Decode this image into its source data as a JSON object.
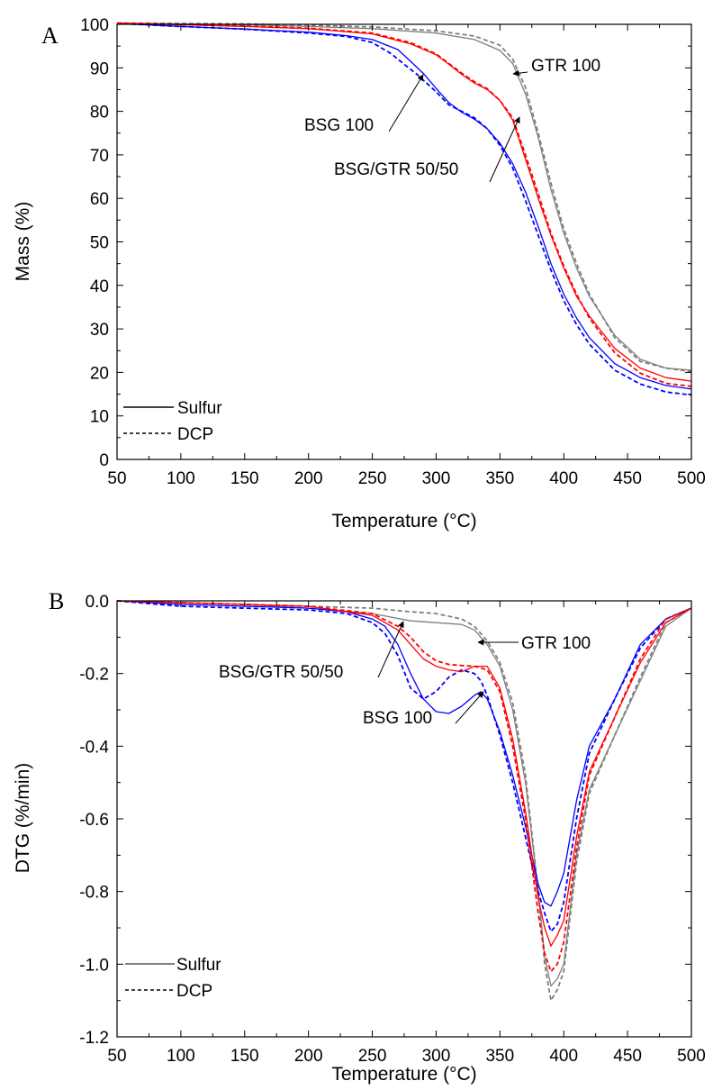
{
  "chart_data": [
    {
      "panel": "A",
      "type": "line",
      "xlabel": "Temperature (°C)",
      "ylabel": "Mass (%)",
      "xlim": [
        50,
        500
      ],
      "ylim": [
        0,
        100
      ],
      "xticks": [
        50,
        100,
        150,
        200,
        250,
        300,
        350,
        400,
        450,
        500
      ],
      "yticks": [
        0,
        10,
        20,
        30,
        40,
        50,
        60,
        70,
        80,
        90,
        100
      ],
      "grid": false,
      "legend_position": "bottom-left",
      "legend": [
        {
          "label": "Sulfur",
          "style": "solid"
        },
        {
          "label": "DCP",
          "style": "dashed"
        }
      ],
      "annotations": [
        {
          "text": "GTR 100",
          "target": [
            362,
            89.8
          ]
        },
        {
          "text": "BSG 100",
          "target": [
            287,
            88.8
          ]
        },
        {
          "text": "BSG/GTR 50/50",
          "target": [
            365,
            78.8
          ]
        }
      ],
      "series": [
        {
          "group": "GTR 100",
          "style": "solid",
          "color": "#7f7f7f",
          "x": [
            50,
            100,
            150,
            200,
            250,
            300,
            330,
            350,
            360,
            370,
            380,
            390,
            400,
            410,
            420,
            440,
            460,
            480,
            500
          ],
          "y": [
            100.3,
            100.1,
            99.9,
            99.5,
            99,
            98,
            96.5,
            94,
            91,
            84,
            74,
            62,
            52,
            44,
            37.5,
            28.5,
            23,
            21,
            20.5
          ]
        },
        {
          "group": "GTR 100",
          "style": "dashed",
          "color": "#7f7f7f",
          "x": [
            50,
            100,
            150,
            200,
            250,
            300,
            330,
            350,
            360,
            370,
            380,
            390,
            400,
            410,
            420,
            440,
            460,
            480,
            500
          ],
          "y": [
            100.3,
            100.2,
            100.1,
            99.8,
            99.4,
            98.5,
            97.3,
            95.2,
            92,
            85.5,
            75,
            63.5,
            53,
            45,
            38,
            28,
            22.5,
            21,
            20.2
          ]
        },
        {
          "group": "BSG 100",
          "style": "solid",
          "color": "#0000ff",
          "x": [
            50,
            100,
            150,
            200,
            230,
            250,
            270,
            280,
            290,
            300,
            310,
            320,
            330,
            340,
            350,
            360,
            370,
            380,
            390,
            400,
            410,
            420,
            440,
            460,
            480,
            500
          ],
          "y": [
            100.2,
            99.5,
            98.9,
            98.2,
            97.4,
            96.5,
            94.2,
            91.5,
            88.7,
            85.3,
            82,
            79.8,
            78.2,
            76,
            72.7,
            68,
            61.5,
            53.5,
            45,
            38,
            32.5,
            28,
            22,
            18.8,
            17,
            16.2
          ]
        },
        {
          "group": "BSG 100",
          "style": "dashed",
          "color": "#0000ff",
          "x": [
            50,
            100,
            150,
            200,
            230,
            250,
            265,
            275,
            285,
            300,
            310,
            320,
            330,
            340,
            350,
            360,
            370,
            380,
            390,
            400,
            410,
            420,
            440,
            460,
            480,
            500
          ],
          "y": [
            100.2,
            99.5,
            98.9,
            98,
            97.2,
            95.8,
            93.2,
            90.8,
            88.5,
            84.5,
            81.5,
            80,
            78.5,
            76,
            72.2,
            67,
            59.5,
            51.5,
            43.5,
            36.5,
            31,
            26.5,
            20.5,
            17.3,
            15.5,
            14.8
          ]
        },
        {
          "group": "BSG/GTR 50/50",
          "style": "solid",
          "color": "#ff0000",
          "x": [
            50,
            100,
            150,
            200,
            250,
            280,
            300,
            310,
            320,
            330,
            340,
            350,
            360,
            370,
            380,
            390,
            400,
            410,
            420,
            440,
            460,
            480,
            500
          ],
          "y": [
            100.3,
            99.9,
            99.5,
            99,
            97.8,
            95.5,
            93,
            90.8,
            88.5,
            86.5,
            85,
            82.5,
            78,
            69,
            60,
            51.5,
            44,
            37.5,
            33,
            25.5,
            21,
            18.8,
            18
          ]
        },
        {
          "group": "BSG/GTR 50/50",
          "style": "dashed",
          "color": "#ff0000",
          "x": [
            50,
            100,
            150,
            200,
            250,
            280,
            300,
            310,
            320,
            330,
            340,
            350,
            360,
            370,
            380,
            390,
            400,
            410,
            420,
            440,
            460,
            480,
            500
          ],
          "y": [
            100.3,
            100,
            99.6,
            99.1,
            98,
            95.8,
            93.2,
            91,
            88.8,
            86.8,
            85.2,
            82.5,
            78.5,
            70,
            61,
            52,
            44.5,
            38,
            32.5,
            24.5,
            19.8,
            17.5,
            16.8
          ]
        }
      ]
    },
    {
      "panel": "B",
      "type": "line",
      "xlabel": "Temperature (°C)",
      "ylabel": "DTG (%/min)",
      "xlim": [
        50,
        500
      ],
      "ylim": [
        -1.2,
        0.0
      ],
      "xticks": [
        50,
        100,
        150,
        200,
        250,
        300,
        350,
        400,
        450,
        500
      ],
      "yticks": [
        0.0,
        -0.2,
        -0.4,
        -0.6,
        -0.8,
        -1.0,
        -1.2
      ],
      "ytick_labels": [
        "0.0",
        "-0.2",
        "-0.4",
        "-0.6",
        "-0.8",
        "-1.0",
        "-1.2"
      ],
      "grid": false,
      "legend_position": "bottom-left",
      "legend": [
        {
          "label": "Sulfur",
          "style": "solid"
        },
        {
          "label": "DCP",
          "style": "dashed"
        }
      ],
      "annotations": [
        {
          "text": "GTR 100",
          "target": [
            335,
            -0.12
          ]
        },
        {
          "text": "BSG/GTR 50/50",
          "target": [
            277,
            -0.15
          ]
        },
        {
          "text": "BSG 100",
          "target": [
            334,
            -0.25
          ]
        }
      ],
      "series": [
        {
          "group": "GTR 100",
          "style": "solid",
          "color": "#7f7f7f",
          "x": [
            50,
            100,
            150,
            200,
            250,
            280,
            300,
            320,
            330,
            340,
            350,
            360,
            370,
            380,
            385,
            390,
            395,
            400,
            410,
            420,
            440,
            460,
            480,
            500
          ],
          "y": [
            0,
            -0.005,
            -0.01,
            -0.02,
            -0.035,
            -0.055,
            -0.06,
            -0.065,
            -0.08,
            -0.12,
            -0.18,
            -0.3,
            -0.5,
            -0.8,
            -0.98,
            -1.06,
            -1.04,
            -1.0,
            -0.7,
            -0.52,
            -0.37,
            -0.22,
            -0.07,
            -0.02
          ]
        },
        {
          "group": "GTR 100",
          "style": "dashed",
          "color": "#7f7f7f",
          "x": [
            50,
            100,
            150,
            200,
            250,
            280,
            300,
            320,
            330,
            340,
            350,
            360,
            370,
            380,
            385,
            390,
            395,
            400,
            410,
            420,
            440,
            460,
            480,
            500
          ],
          "y": [
            0,
            -0.005,
            -0.01,
            -0.015,
            -0.02,
            -0.03,
            -0.035,
            -0.05,
            -0.07,
            -0.11,
            -0.17,
            -0.28,
            -0.48,
            -0.8,
            -1.0,
            -1.1,
            -1.07,
            -1.02,
            -0.72,
            -0.53,
            -0.37,
            -0.21,
            -0.06,
            -0.02
          ]
        },
        {
          "group": "BSG 100",
          "style": "solid",
          "color": "#0000ff",
          "x": [
            50,
            100,
            150,
            200,
            230,
            250,
            260,
            270,
            280,
            290,
            300,
            310,
            320,
            330,
            335,
            340,
            350,
            360,
            370,
            380,
            385,
            390,
            395,
            400,
            410,
            420,
            440,
            460,
            480,
            500
          ],
          "y": [
            0,
            -0.01,
            -0.015,
            -0.02,
            -0.03,
            -0.05,
            -0.07,
            -0.12,
            -0.2,
            -0.27,
            -0.305,
            -0.31,
            -0.29,
            -0.26,
            -0.25,
            -0.27,
            -0.36,
            -0.48,
            -0.62,
            -0.78,
            -0.83,
            -0.84,
            -0.8,
            -0.75,
            -0.55,
            -0.4,
            -0.27,
            -0.12,
            -0.05,
            -0.02
          ]
        },
        {
          "group": "BSG 100",
          "style": "dashed",
          "color": "#0000ff",
          "x": [
            50,
            100,
            150,
            200,
            230,
            250,
            260,
            270,
            280,
            290,
            300,
            310,
            320,
            330,
            335,
            340,
            350,
            360,
            370,
            380,
            385,
            390,
            395,
            400,
            410,
            420,
            440,
            460,
            480,
            500
          ],
          "y": [
            0,
            -0.015,
            -0.02,
            -0.025,
            -0.035,
            -0.06,
            -0.09,
            -0.15,
            -0.24,
            -0.27,
            -0.25,
            -0.21,
            -0.19,
            -0.2,
            -0.22,
            -0.26,
            -0.37,
            -0.5,
            -0.65,
            -0.8,
            -0.86,
            -0.91,
            -0.89,
            -0.83,
            -0.6,
            -0.42,
            -0.27,
            -0.13,
            -0.05,
            -0.02
          ]
        },
        {
          "group": "BSG/GTR 50/50",
          "style": "solid",
          "color": "#ff0000",
          "x": [
            50,
            100,
            150,
            200,
            250,
            270,
            280,
            290,
            300,
            310,
            320,
            330,
            340,
            350,
            360,
            370,
            380,
            385,
            390,
            395,
            400,
            410,
            420,
            440,
            460,
            480,
            500
          ],
          "y": [
            0,
            -0.005,
            -0.01,
            -0.015,
            -0.04,
            -0.08,
            -0.12,
            -0.16,
            -0.18,
            -0.19,
            -0.195,
            -0.18,
            -0.18,
            -0.24,
            -0.38,
            -0.58,
            -0.82,
            -0.9,
            -0.95,
            -0.92,
            -0.88,
            -0.65,
            -0.47,
            -0.32,
            -0.17,
            -0.06,
            -0.02
          ]
        },
        {
          "group": "BSG/GTR 50/50",
          "style": "dashed",
          "color": "#ff0000",
          "x": [
            50,
            100,
            150,
            200,
            250,
            270,
            280,
            290,
            300,
            310,
            320,
            330,
            340,
            350,
            360,
            370,
            380,
            385,
            390,
            395,
            400,
            410,
            420,
            440,
            460,
            480,
            500
          ],
          "y": [
            0,
            -0.005,
            -0.01,
            -0.015,
            -0.035,
            -0.07,
            -0.1,
            -0.14,
            -0.165,
            -0.175,
            -0.178,
            -0.18,
            -0.19,
            -0.25,
            -0.4,
            -0.6,
            -0.86,
            -0.97,
            -1.02,
            -1.0,
            -0.94,
            -0.68,
            -0.48,
            -0.32,
            -0.16,
            -0.05,
            -0.02
          ]
        }
      ]
    }
  ]
}
